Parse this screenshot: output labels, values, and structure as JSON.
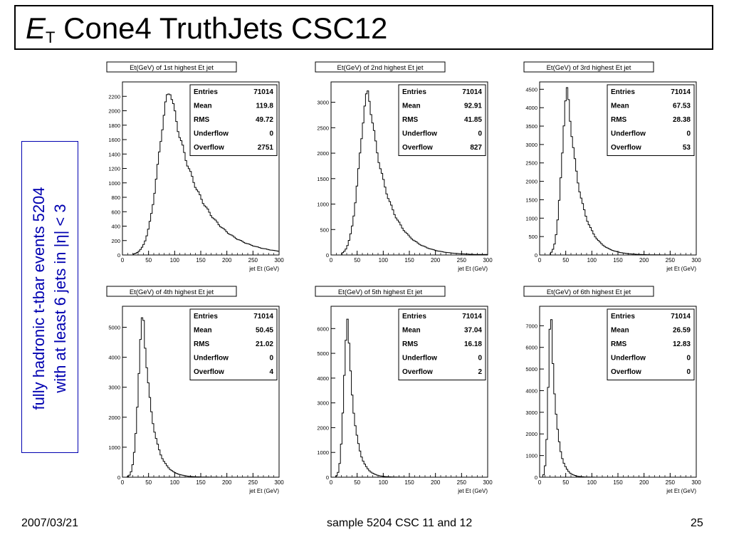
{
  "slide": {
    "title_main": "E",
    "title_sub": "T",
    "title_rest": " Cone4 TruthJets CSC12",
    "side_line1": "fully hadronic t-tbar events 5204",
    "side_line2": "with at least 6 jets in |η| < 3",
    "footer_date": "2007/03/21",
    "footer_center": "sample 5204 CSC 11 and 12",
    "footer_page": "25"
  },
  "stats_labels": [
    "Entries",
    "Mean",
    "RMS",
    "Underflow",
    "Overflow"
  ],
  "chart_data": [
    {
      "type": "histogram",
      "title": "Et(GeV) of 1st highest Et jet",
      "xlabel": "jet Et (GeV)",
      "xlim": [
        0,
        300
      ],
      "ylim": [
        0,
        2400
      ],
      "xticks": [
        0,
        50,
        100,
        150,
        200,
        250,
        300
      ],
      "yticks": [
        0,
        200,
        400,
        600,
        800,
        1000,
        1200,
        1400,
        1600,
        1800,
        2000,
        2200
      ],
      "stats": {
        "Entries": "71014",
        "Mean": "119.8",
        "RMS": "49.72",
        "Underflow": "0",
        "Overflow": "2751"
      },
      "peak": 2280,
      "x0": 20,
      "xpeak": 92,
      "width_left": 22,
      "tail_decay": 55,
      "floor": 80
    },
    {
      "type": "histogram",
      "title": "Et(GeV) of 2nd highest Et jet",
      "xlabel": "jet Et (GeV)",
      "xlim": [
        0,
        300
      ],
      "ylim": [
        0,
        3400
      ],
      "xticks": [
        0,
        50,
        100,
        150,
        200,
        250,
        300
      ],
      "yticks": [
        0,
        500,
        1000,
        1500,
        2000,
        2500,
        3000
      ],
      "stats": {
        "Entries": "71014",
        "Mean": "92.91",
        "RMS": "41.85",
        "Underflow": "0",
        "Overflow": "827"
      },
      "peak": 3200,
      "x0": 20,
      "xpeak": 72,
      "width_left": 17,
      "tail_decay": 36,
      "floor": 20
    },
    {
      "type": "histogram",
      "title": "Et(GeV) of 3rd highest Et jet",
      "xlabel": "jet Et (GeV)",
      "xlim": [
        0,
        300
      ],
      "ylim": [
        0,
        4700
      ],
      "xticks": [
        0,
        50,
        100,
        150,
        200,
        250,
        300
      ],
      "yticks": [
        0,
        500,
        1000,
        1500,
        2000,
        2500,
        3000,
        3500,
        4000,
        4500
      ],
      "stats": {
        "Entries": "71014",
        "Mean": "67.53",
        "RMS": "28.38",
        "Underflow": "0",
        "Overflow": "53"
      },
      "peak": 4480,
      "x0": 20,
      "xpeak": 54,
      "width_left": 11,
      "tail_decay": 24,
      "floor": 0
    },
    {
      "type": "histogram",
      "title": "Et(GeV) of 4th highest Et jet",
      "xlabel": "jet Et (GeV)",
      "xlim": [
        0,
        300
      ],
      "ylim": [
        0,
        5700
      ],
      "xticks": [
        0,
        50,
        100,
        150,
        200,
        250,
        300
      ],
      "yticks": [
        0,
        1000,
        2000,
        3000,
        4000,
        5000
      ],
      "stats": {
        "Entries": "71014",
        "Mean": "50.45",
        "RMS": "21.02",
        "Underflow": "0",
        "Overflow": "4"
      },
      "peak": 5420,
      "x0": 10,
      "xpeak": 40,
      "width_left": 9,
      "tail_decay": 17,
      "floor": 0
    },
    {
      "type": "histogram",
      "title": "Et(GeV) of 5th highest Et jet",
      "xlabel": "jet Et (GeV)",
      "xlim": [
        0,
        300
      ],
      "ylim": [
        0,
        6900
      ],
      "xticks": [
        0,
        50,
        100,
        150,
        200,
        250,
        300
      ],
      "yticks": [
        0,
        1000,
        2000,
        3000,
        4000,
        5000,
        6000
      ],
      "stats": {
        "Entries": "71014",
        "Mean": "37.04",
        "RMS": "16.18",
        "Underflow": "0",
        "Overflow": "2"
      },
      "peak": 6420,
      "x0": 10,
      "xpeak": 32,
      "width_left": 7,
      "tail_decay": 13,
      "floor": 0
    },
    {
      "type": "histogram",
      "title": "Et(GeV) of 6th highest Et jet",
      "xlabel": "jet Et (GeV)",
      "xlim": [
        0,
        300
      ],
      "ylim": [
        0,
        7900
      ],
      "xticks": [
        0,
        50,
        100,
        150,
        200,
        250,
        300
      ],
      "yticks": [
        0,
        1000,
        2000,
        3000,
        4000,
        5000,
        6000,
        7000
      ],
      "stats": {
        "Entries": "71014",
        "Mean": "26.59",
        "RMS": "12.83",
        "Underflow": "0",
        "Overflow": "0"
      },
      "peak": 7560,
      "x0": 5,
      "xpeak": 22,
      "width_left": 5,
      "tail_decay": 10,
      "floor": 0
    }
  ]
}
